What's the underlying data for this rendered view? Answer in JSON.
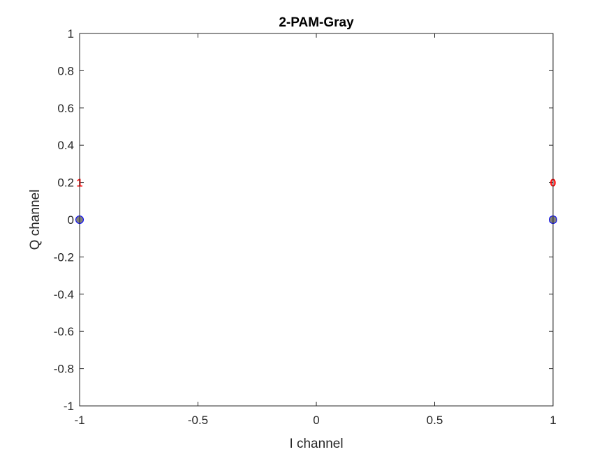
{
  "chart_data": {
    "type": "scatter",
    "title": "2-PAM-Gray",
    "xlabel": "I channel",
    "ylabel": "Q channel",
    "xlim": [
      -1,
      1
    ],
    "ylim": [
      -1,
      1
    ],
    "grid": false,
    "legend": "none",
    "xticks": [
      -1,
      -0.5,
      0,
      0.5,
      1
    ],
    "xtick_labels": [
      "-1",
      "-0.5",
      "0",
      "0.5",
      "1"
    ],
    "yticks": [
      -1,
      -0.8,
      -0.6,
      -0.4,
      -0.2,
      0,
      0.2,
      0.4,
      0.6,
      0.8,
      1
    ],
    "ytick_labels": [
      "-1",
      "-0.8",
      "-0.6",
      "-0.4",
      "-0.2",
      "0",
      "0.2",
      "0.4",
      "0.6",
      "0.8",
      "1"
    ],
    "points": [
      {
        "x": -1,
        "y": 0,
        "label": "1"
      },
      {
        "x": 1,
        "y": 0,
        "label": "0"
      }
    ],
    "label_offset_y": 0.2,
    "marker_fill": "#808080",
    "marker_edge": "#0000ff",
    "label_color": "#ff0000",
    "axis_color": "#262626"
  }
}
